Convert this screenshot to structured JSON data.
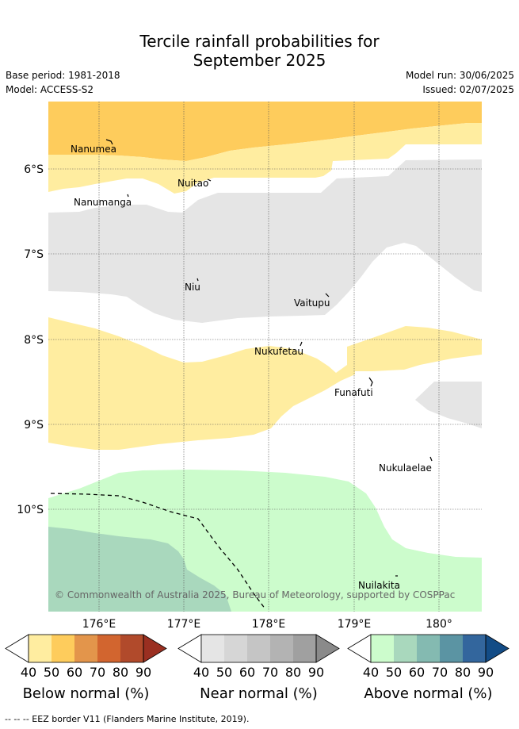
{
  "title_line1": "Tercile rainfall probabilities for",
  "title_line2": "September 2025",
  "base_period": "Base period: 1981-2018",
  "model": "Model: ACCESS-S2",
  "model_run": "Model run: 30/06/2025",
  "issued": "Issued: 02/07/2025",
  "copyright": "© Commonwealth of Australia 2025, Bureau of Meteorology, supported by COSPPac",
  "islands": [
    "Nanumea",
    "Nuitao",
    "Nanumanga",
    "Niu",
    "Vaitupu",
    "Nukufetau",
    "Funafuti",
    "Nukulaelae",
    "Nuilakita"
  ],
  "lat_labels": [
    "6°S",
    "7°S",
    "8°S",
    "9°S",
    "10°S"
  ],
  "lon_labels": [
    "176°E",
    "177°E",
    "178°E",
    "179°E",
    "180°"
  ],
  "colorbars": [
    {
      "label": "Below normal (%)",
      "ticks": [
        "40",
        "50",
        "60",
        "70",
        "80",
        "90"
      ],
      "colors": [
        "#ffffff",
        "#ffeda0",
        "#fecc5c",
        "#e3954b",
        "#d2652f",
        "#b14a2b",
        "#9a2f21"
      ]
    },
    {
      "label": "Near normal (%)",
      "ticks": [
        "40",
        "50",
        "60",
        "70",
        "80",
        "90"
      ],
      "colors": [
        "#ffffff",
        "#e5e5e5",
        "#d6d6d6",
        "#c5c5c5",
        "#b3b3b3",
        "#a0a0a0",
        "#8a8a8a"
      ]
    },
    {
      "label": "Above normal (%)",
      "ticks": [
        "40",
        "50",
        "60",
        "70",
        "80",
        "90"
      ],
      "colors": [
        "#ffffff",
        "#ccfccc",
        "#a9d8bd",
        "#84bab1",
        "#5b94a3",
        "#33669d",
        "#134c86"
      ]
    }
  ],
  "footer": "-- -- -- EEZ border V11 (Flanders Marine Institute, 2019)."
}
